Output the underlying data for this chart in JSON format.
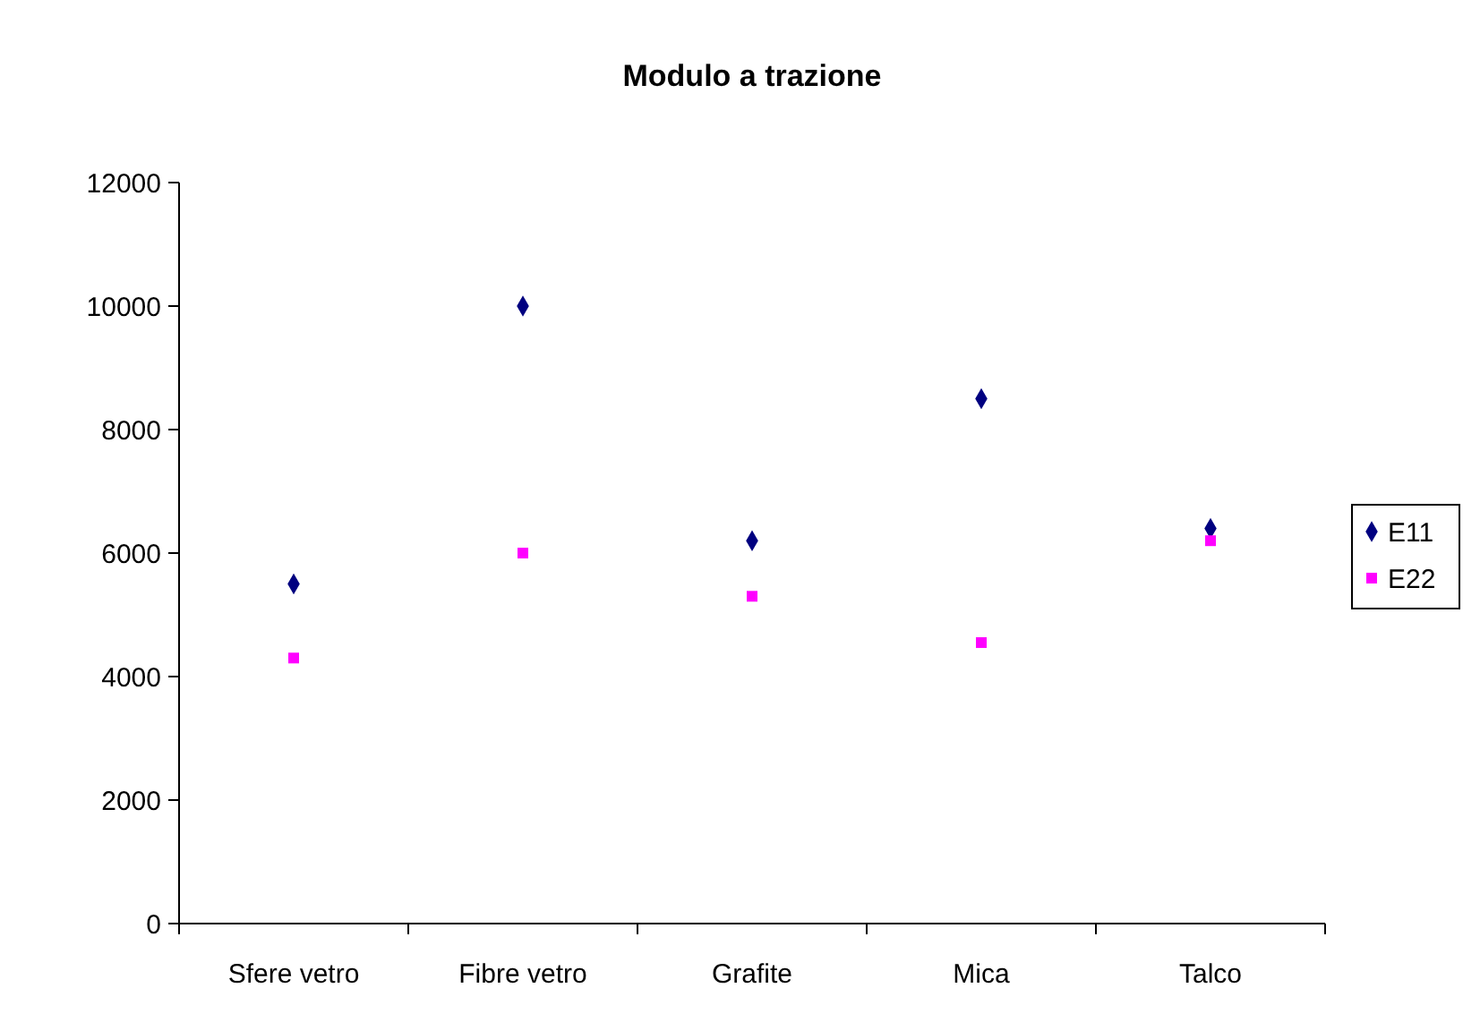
{
  "chart_data": {
    "type": "scatter",
    "title": "Modulo a trazione",
    "categories": [
      "Sfere vetro",
      "Fibre vetro",
      "Grafite",
      "Mica",
      "Talco"
    ],
    "series": [
      {
        "name": "E11",
        "color": "#000080",
        "marker": "diamond",
        "values": [
          5500,
          10000,
          6200,
          8500,
          6400
        ]
      },
      {
        "name": "E22",
        "color": "#ff00ff",
        "marker": "square",
        "values": [
          4300,
          6000,
          5300,
          4550,
          6200
        ]
      }
    ],
    "ylim": [
      0,
      12000
    ],
    "yticks": [
      0,
      2000,
      4000,
      6000,
      8000,
      10000,
      12000
    ],
    "grid": false,
    "legend": "right"
  }
}
